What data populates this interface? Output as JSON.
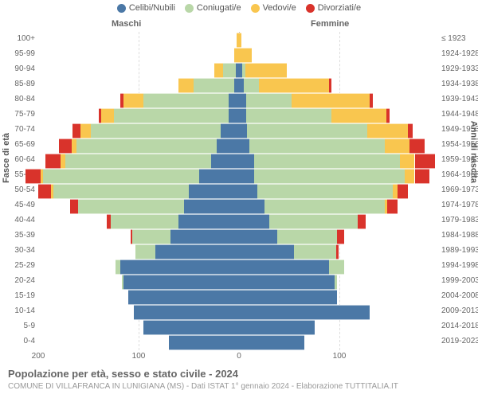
{
  "legend": {
    "items": [
      {
        "label": "Celibi/Nubili",
        "color": "#4b78a6"
      },
      {
        "label": "Coniugati/e",
        "color": "#b9d7a8"
      },
      {
        "label": "Vedovi/e",
        "color": "#f9c64f"
      },
      {
        "label": "Divorziati/e",
        "color": "#d9332b"
      }
    ]
  },
  "gender": {
    "male": "Maschi",
    "female": "Femmine"
  },
  "axis": {
    "left_title": "Fasce di età",
    "right_title": "Anni di nascita",
    "x_ticks_left": [
      200,
      100,
      0
    ],
    "x_ticks_right": [
      100
    ],
    "x_max": 200
  },
  "title": "Popolazione per età, sesso e stato civile - 2024",
  "subtitle": "COMUNE DI VILLAFRANCA IN LUNIGIANA (MS) - Dati ISTAT 1° gennaio 2024 - Elaborazione TUTTITALIA.IT",
  "colors": {
    "single": "#4b78a6",
    "married": "#b9d7a8",
    "widowed": "#f9c64f",
    "divorced": "#d9332b"
  },
  "rows": [
    {
      "age": "100+",
      "birth": "≤ 1923",
      "m": {
        "s": 0,
        "c": 0,
        "v": 2,
        "d": 0
      },
      "f": {
        "s": 0,
        "c": 0,
        "v": 2,
        "d": 0
      }
    },
    {
      "age": "95-99",
      "birth": "1924-1928",
      "m": {
        "s": 0,
        "c": 0,
        "v": 5,
        "d": 0
      },
      "f": {
        "s": 0,
        "c": 0,
        "v": 13,
        "d": 0
      }
    },
    {
      "age": "90-94",
      "birth": "1929-1933",
      "m": {
        "s": 3,
        "c": 13,
        "v": 9,
        "d": 0
      },
      "f": {
        "s": 3,
        "c": 3,
        "v": 42,
        "d": 0
      }
    },
    {
      "age": "85-89",
      "birth": "1934-1938",
      "m": {
        "s": 5,
        "c": 40,
        "v": 15,
        "d": 0
      },
      "f": {
        "s": 5,
        "c": 15,
        "v": 70,
        "d": 2
      }
    },
    {
      "age": "80-84",
      "birth": "1939-1943",
      "m": {
        "s": 10,
        "c": 85,
        "v": 20,
        "d": 3
      },
      "f": {
        "s": 7,
        "c": 45,
        "v": 78,
        "d": 3
      }
    },
    {
      "age": "75-79",
      "birth": "1944-1948",
      "m": {
        "s": 10,
        "c": 115,
        "v": 12,
        "d": 3
      },
      "f": {
        "s": 7,
        "c": 85,
        "v": 55,
        "d": 3
      }
    },
    {
      "age": "70-74",
      "birth": "1949-1953",
      "m": {
        "s": 18,
        "c": 130,
        "v": 10,
        "d": 8
      },
      "f": {
        "s": 8,
        "c": 120,
        "v": 40,
        "d": 5
      }
    },
    {
      "age": "65-69",
      "birth": "1954-1958",
      "m": {
        "s": 22,
        "c": 140,
        "v": 5,
        "d": 12
      },
      "f": {
        "s": 10,
        "c": 135,
        "v": 25,
        "d": 15
      }
    },
    {
      "age": "60-64",
      "birth": "1959-1963",
      "m": {
        "s": 28,
        "c": 145,
        "v": 5,
        "d": 15
      },
      "f": {
        "s": 15,
        "c": 145,
        "v": 15,
        "d": 20
      }
    },
    {
      "age": "55-59",
      "birth": "1964-1968",
      "m": {
        "s": 40,
        "c": 155,
        "v": 3,
        "d": 15
      },
      "f": {
        "s": 15,
        "c": 150,
        "v": 10,
        "d": 15
      }
    },
    {
      "age": "50-54",
      "birth": "1969-1973",
      "m": {
        "s": 50,
        "c": 135,
        "v": 2,
        "d": 13
      },
      "f": {
        "s": 18,
        "c": 135,
        "v": 5,
        "d": 10
      }
    },
    {
      "age": "45-49",
      "birth": "1974-1978",
      "m": {
        "s": 55,
        "c": 105,
        "v": 0,
        "d": 8
      },
      "f": {
        "s": 25,
        "c": 120,
        "v": 3,
        "d": 10
      }
    },
    {
      "age": "40-44",
      "birth": "1979-1983",
      "m": {
        "s": 60,
        "c": 68,
        "v": 0,
        "d": 4
      },
      "f": {
        "s": 30,
        "c": 88,
        "v": 0,
        "d": 8
      }
    },
    {
      "age": "35-39",
      "birth": "1984-1988",
      "m": {
        "s": 68,
        "c": 38,
        "v": 0,
        "d": 2
      },
      "f": {
        "s": 38,
        "c": 60,
        "v": 0,
        "d": 7
      }
    },
    {
      "age": "30-34",
      "birth": "1989-1993",
      "m": {
        "s": 83,
        "c": 20,
        "v": 0,
        "d": 0
      },
      "f": {
        "s": 55,
        "c": 42,
        "v": 0,
        "d": 2
      }
    },
    {
      "age": "25-29",
      "birth": "1994-1998",
      "m": {
        "s": 118,
        "c": 5,
        "v": 0,
        "d": 0
      },
      "f": {
        "s": 90,
        "c": 15,
        "v": 0,
        "d": 0
      }
    },
    {
      "age": "20-24",
      "birth": "1999-2003",
      "m": {
        "s": 115,
        "c": 2,
        "v": 0,
        "d": 0
      },
      "f": {
        "s": 95,
        "c": 3,
        "v": 0,
        "d": 0
      }
    },
    {
      "age": "15-19",
      "birth": "2004-2008",
      "m": {
        "s": 110,
        "c": 0,
        "v": 0,
        "d": 0
      },
      "f": {
        "s": 98,
        "c": 0,
        "v": 0,
        "d": 0
      }
    },
    {
      "age": "10-14",
      "birth": "2009-2013",
      "m": {
        "s": 105,
        "c": 0,
        "v": 0,
        "d": 0
      },
      "f": {
        "s": 130,
        "c": 0,
        "v": 0,
        "d": 0
      }
    },
    {
      "age": "5-9",
      "birth": "2014-2018",
      "m": {
        "s": 95,
        "c": 0,
        "v": 0,
        "d": 0
      },
      "f": {
        "s": 75,
        "c": 0,
        "v": 0,
        "d": 0
      }
    },
    {
      "age": "0-4",
      "birth": "2019-2023",
      "m": {
        "s": 70,
        "c": 0,
        "v": 0,
        "d": 0
      },
      "f": {
        "s": 65,
        "c": 0,
        "v": 0,
        "d": 0
      }
    }
  ]
}
